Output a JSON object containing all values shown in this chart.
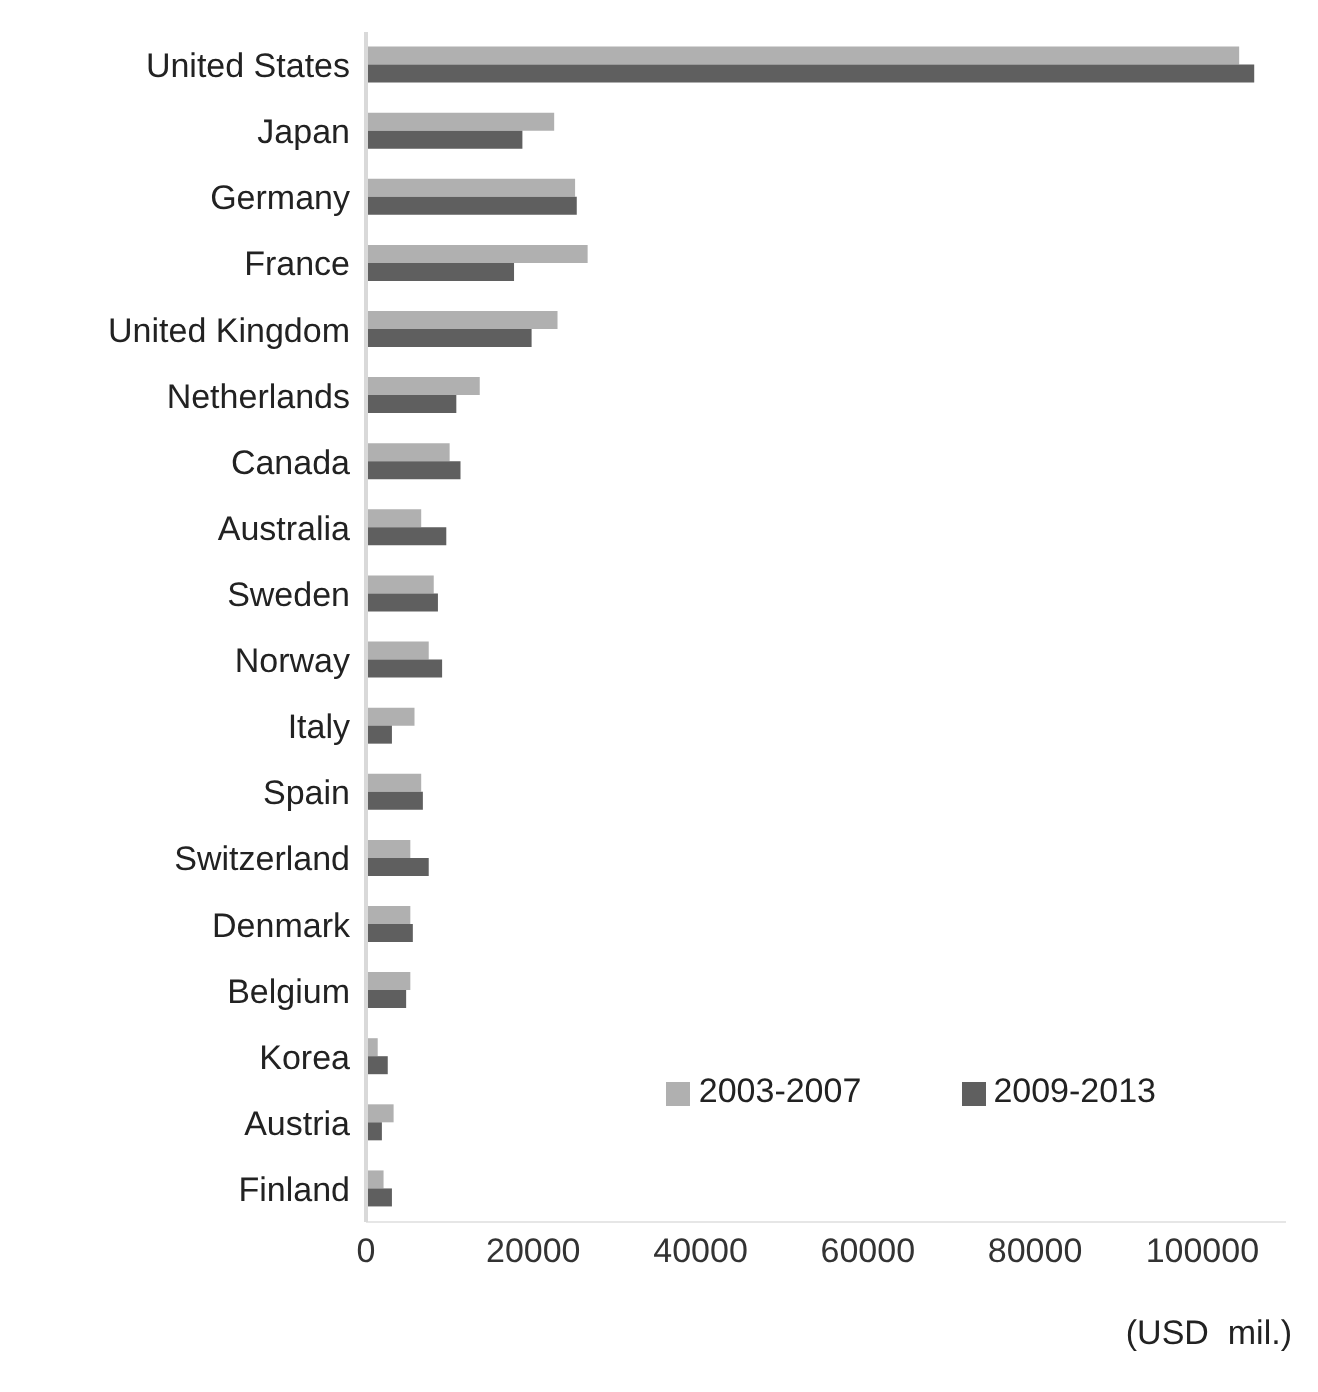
{
  "chart_data": {
    "type": "bar",
    "orientation": "horizontal",
    "xlabel": "(USD  mil.)",
    "categories": [
      "United States",
      "Japan",
      "Germany",
      "France",
      "United Kingdom",
      "Netherlands",
      "Canada",
      "Australia",
      "Sweden",
      "Norway",
      "Italy",
      "Spain",
      "Switzerland",
      "Denmark",
      "Belgium",
      "Korea",
      "Austria",
      "Finland"
    ],
    "series": [
      {
        "name": "2003-2007",
        "color": "#b0b0b0",
        "values": [
          104400,
          22500,
          25000,
          26500,
          22900,
          13600,
          10000,
          6600,
          8100,
          7500,
          5800,
          6600,
          5300,
          5300,
          5300,
          1400,
          3300,
          2100
        ]
      },
      {
        "name": "2009-2013",
        "color": "#5f5f5f",
        "values": [
          106200,
          18700,
          25200,
          17700,
          19800,
          10800,
          11300,
          9600,
          8600,
          9100,
          3100,
          6800,
          7500,
          5600,
          4800,
          2600,
          1900,
          3100
        ]
      }
    ],
    "xlim": [
      0,
      110000
    ],
    "xticks": [
      0,
      20000,
      40000,
      60000,
      80000,
      100000
    ],
    "grid": false,
    "legend": "bottom right"
  }
}
